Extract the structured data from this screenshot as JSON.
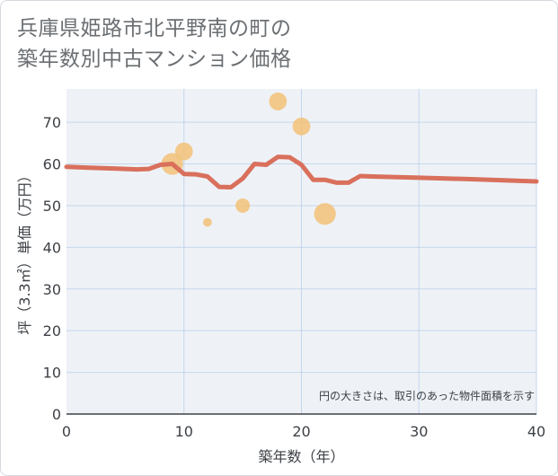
{
  "chart_data": {
    "type": "scatter",
    "title_line1": "兵庫県姫路市北平野南の町の",
    "title_line2": "築年数別中古マンション価格",
    "xlabel": "築年数（年）",
    "ylabel": "坪（3.3㎡）単価（万円）",
    "xlim": [
      0,
      40
    ],
    "ylim": [
      0,
      78
    ],
    "x_ticks": [
      0,
      10,
      20,
      30,
      40
    ],
    "y_ticks": [
      0,
      10,
      20,
      30,
      40,
      50,
      60,
      70
    ],
    "grid": true,
    "note": "円の大きさは、取引のあった物件面積を示す",
    "colors": {
      "bubble": "#f2c278",
      "trend": "#d9705c",
      "plot_bg": "#eef2f7",
      "grid": "#c4d6ea"
    },
    "series": [
      {
        "kind": "bubbles",
        "points": [
          {
            "x": 9,
            "y": 60,
            "size": 3
          },
          {
            "x": 10,
            "y": 63,
            "size": 2
          },
          {
            "x": 12,
            "y": 46,
            "size": 0.5
          },
          {
            "x": 15,
            "y": 50,
            "size": 1.3
          },
          {
            "x": 18,
            "y": 75,
            "size": 2
          },
          {
            "x": 20,
            "y": 69,
            "size": 2
          },
          {
            "x": 22,
            "y": 48,
            "size": 3
          }
        ]
      },
      {
        "kind": "trend",
        "x": [
          0,
          2,
          4,
          6,
          7,
          8,
          9,
          10,
          11,
          12,
          13,
          14,
          15,
          16,
          17,
          18,
          19,
          20,
          21,
          22,
          23,
          24,
          25,
          26,
          30,
          35,
          40
        ],
        "y": [
          59.3,
          59.1,
          58.9,
          58.7,
          58.8,
          59.8,
          60,
          57.6,
          57.5,
          57,
          54.5,
          54.4,
          56.5,
          60,
          59.8,
          61.7,
          61.6,
          59.8,
          56.2,
          56.2,
          55.5,
          55.5,
          57.1,
          57,
          56.7,
          56.3,
          55.8
        ]
      }
    ]
  }
}
